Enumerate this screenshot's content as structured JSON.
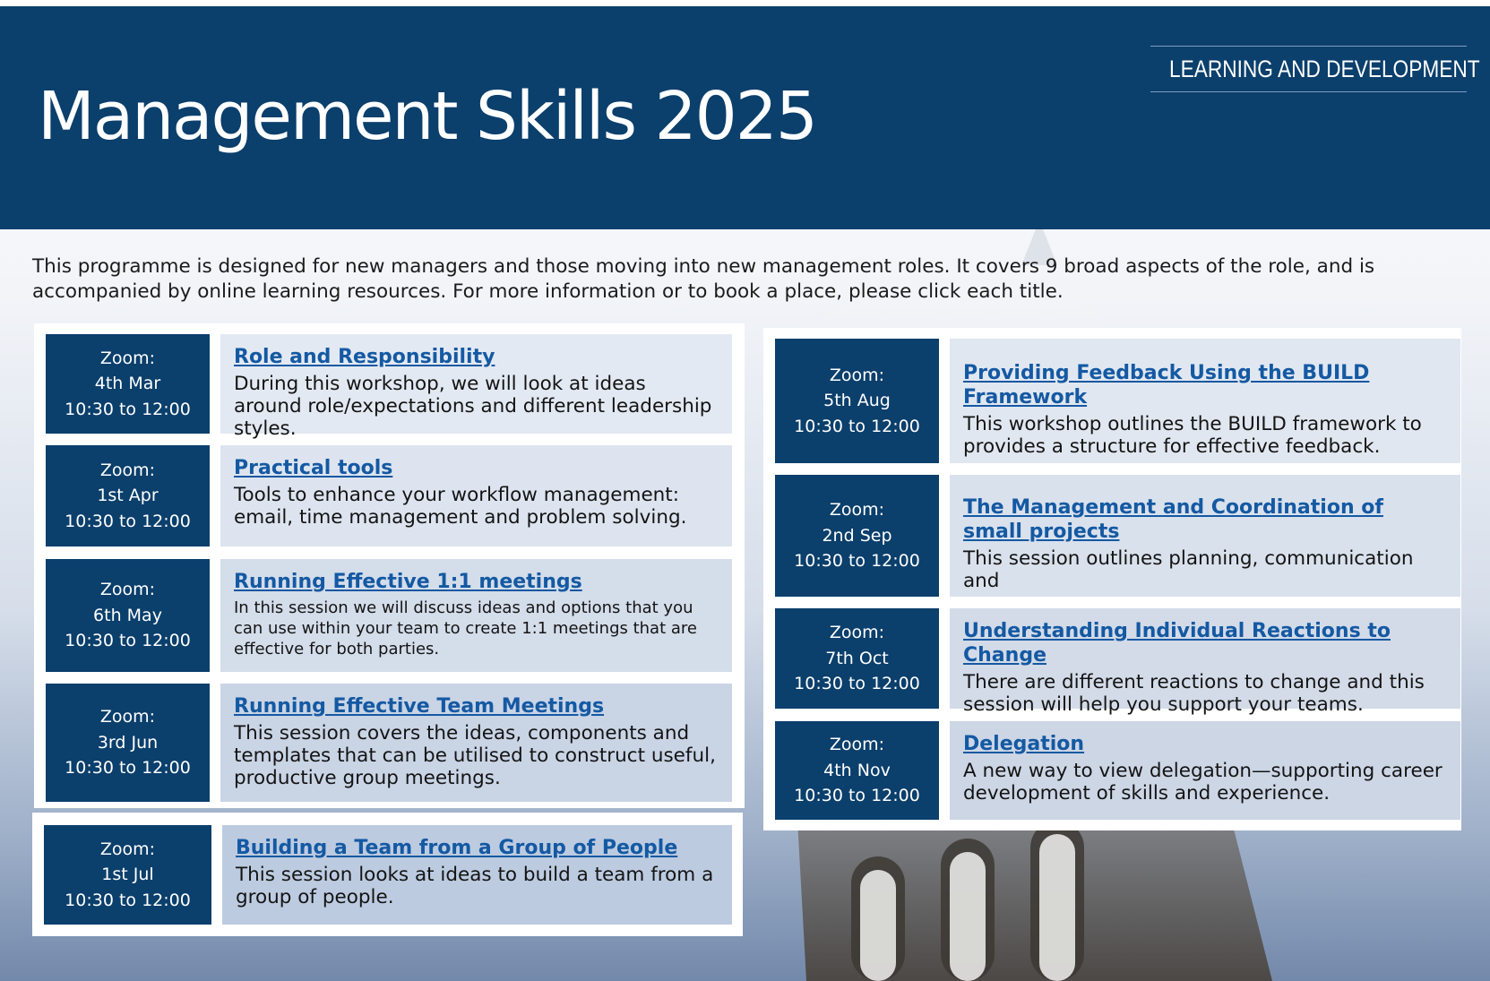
{
  "header": {
    "title": "Management Skills 2025",
    "department": "LEARNING AND DEVELOPMENT",
    "accent_color": "#f6c200",
    "background_color": "#0b3f6c"
  },
  "intro": "This programme is designed for new managers and those moving into new management roles. It covers 9 broad aspects of the role, and is accompanied by online learning resources. For more information or to book a place, please click each title.",
  "sessions": [
    {
      "mode": "Zoom:",
      "date": "4th Mar",
      "time": "10:30 to 12:00",
      "title": "Role and Responsibility",
      "description": "During this workshop, we will look at ideas around role/expectations and different leadership styles."
    },
    {
      "mode": "Zoom:",
      "date": "1st Apr",
      "time": "10:30 to 12:00",
      "title": "Practical tools",
      "description": "Tools to enhance your workflow management: email, time management and problem solving."
    },
    {
      "mode": "Zoom:",
      "date": "6th May",
      "time": "10:30 to 12:00",
      "title": "Running Effective 1:1 meetings",
      "description": "In this session we will discuss ideas and options that you can use within your team to create 1:1 meetings that are effective for both parties."
    },
    {
      "mode": "Zoom:",
      "date": "3rd Jun",
      "time": "10:30 to 12:00",
      "title": "Running Effective Team Meetings",
      "description": "This session covers the ideas, components and templates that can be utilised to construct useful, productive group meetings."
    },
    {
      "mode": "Zoom:",
      "date": "1st Jul",
      "time": "10:30 to 12:00",
      "title": "Building a Team from a Group of People",
      "description": "This session looks at ideas to build a team from a group of people."
    },
    {
      "mode": "Zoom:",
      "date": "5th Aug",
      "time": "10:30 to 12:00",
      "title": "Providing Feedback Using the BUILD Framework",
      "description": "This workshop outlines the BUILD framework to provides a structure for effective feedback."
    },
    {
      "mode": "Zoom:",
      "date": "2nd Sep",
      "time": "10:30 to 12:00",
      "title": "The Management and Coordination of small projects",
      "description": "This session outlines planning, communication and"
    },
    {
      "mode": "Zoom:",
      "date": "7th Oct",
      "time": "10:30 to 12:00",
      "title": "Understanding Individual Reactions to Change",
      "description": "There are different reactions to change and this session will help you support your teams."
    },
    {
      "mode": "Zoom:",
      "date": "4th Nov",
      "time": "10:30 to 12:00",
      "title": "Delegation",
      "description": "A new way to view delegation—supporting career development of skills and experience."
    }
  ]
}
